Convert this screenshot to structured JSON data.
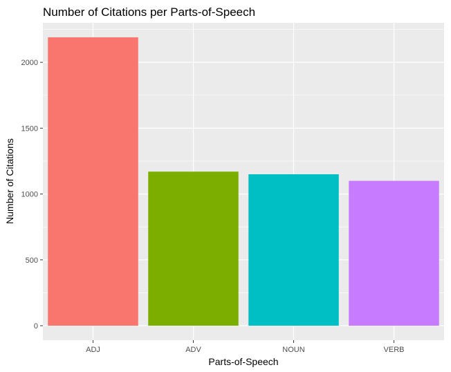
{
  "chart_data": {
    "type": "bar",
    "title": "Number of Citations per Parts-of-Speech",
    "xlabel": "Parts-of-Speech",
    "ylabel": "Number of Citations",
    "categories": [
      "ADJ",
      "ADV",
      "NOUN",
      "VERB"
    ],
    "values": [
      2190,
      1170,
      1150,
      1100
    ],
    "colors": [
      "#F8766D",
      "#7CAE00",
      "#00BFC4",
      "#C77CFF"
    ],
    "ylim": [
      -110,
      2300
    ],
    "yticks": [
      0,
      500,
      1000,
      1500,
      2000
    ],
    "grid": true,
    "legend": "none"
  }
}
